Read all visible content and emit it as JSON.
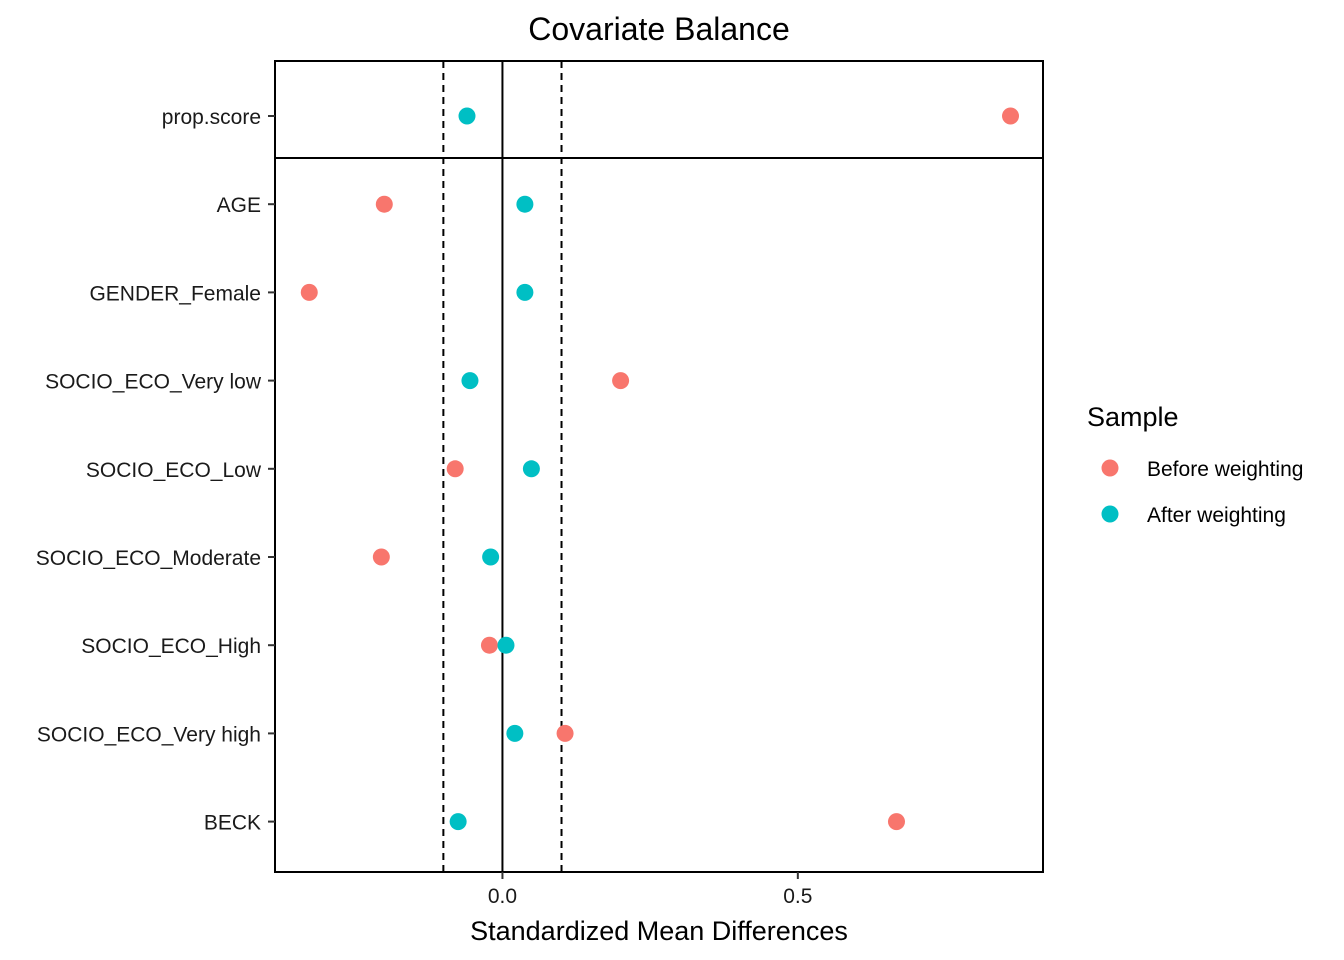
{
  "chart_data": {
    "type": "scatter",
    "title": "Covariate Balance",
    "xlabel": "Standardized Mean Differences",
    "ylabel": "",
    "xlim": [
      -0.385,
      0.915
    ],
    "xticks": [
      {
        "value": 0.0,
        "label": "0.0"
      },
      {
        "value": 0.5,
        "label": "0.5"
      }
    ],
    "reference_lines": {
      "solid": 0.0,
      "dashed": [
        -0.1,
        0.1
      ]
    },
    "covariates": [
      "prop.score",
      "AGE",
      "GENDER_Female",
      "SOCIO_ECO_Very low",
      "SOCIO_ECO_Low",
      "SOCIO_ECO_Moderate",
      "SOCIO_ECO_High",
      "SOCIO_ECO_Very high",
      "BECK"
    ],
    "series": [
      {
        "name": "Before weighting",
        "color": "#F8766D",
        "values": [
          0.86,
          -0.2,
          -0.327,
          0.2,
          -0.08,
          -0.205,
          -0.022,
          0.106,
          0.667
        ]
      },
      {
        "name": "After weighting",
        "color": "#00BFC4",
        "values": [
          -0.06,
          0.038,
          0.038,
          -0.055,
          0.049,
          -0.02,
          0.006,
          0.021,
          -0.075
        ]
      }
    ],
    "legend": {
      "title": "Sample",
      "position": "right"
    },
    "grid": false
  }
}
